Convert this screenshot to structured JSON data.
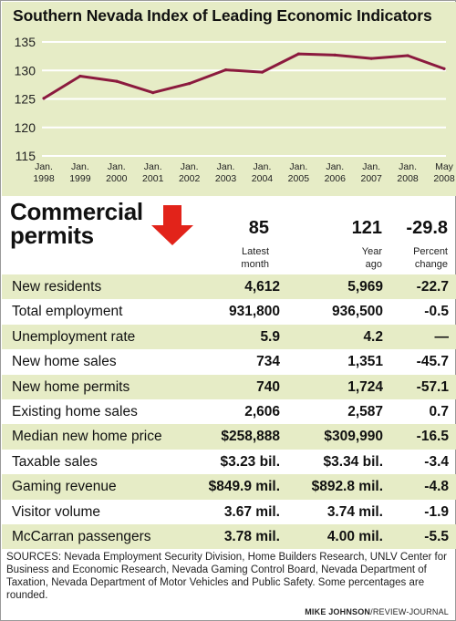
{
  "chart_data": {
    "type": "line",
    "title": "Southern Nevada Index of Leading Economic Indicators",
    "categories": [
      [
        "Jan.",
        "1998"
      ],
      [
        "Jan.",
        "1999"
      ],
      [
        "Jan.",
        "2000"
      ],
      [
        "Jan.",
        "2001"
      ],
      [
        "Jan.",
        "2002"
      ],
      [
        "Jan.",
        "2003"
      ],
      [
        "Jan.",
        "2004"
      ],
      [
        "Jan.",
        "2005"
      ],
      [
        "Jan.",
        "2006"
      ],
      [
        "Jan.",
        "2007"
      ],
      [
        "Jan.",
        "2008"
      ],
      [
        "May",
        "2008"
      ]
    ],
    "values": [
      125.1,
      129.0,
      128.1,
      126.1,
      127.7,
      130.1,
      129.7,
      132.9,
      132.7,
      132.1,
      132.6,
      130.3
    ],
    "yticks": [
      115,
      120,
      125,
      130,
      135
    ],
    "ylim": [
      115,
      135
    ],
    "xlabel": "",
    "ylabel": "",
    "grid": "horizontal",
    "colors": {
      "background": "#e6ecc6",
      "line": "#8b1a3e",
      "grid": "#ffffff"
    }
  },
  "permits": {
    "label_line1": "Commercial",
    "label_line2": "permits",
    "latest": "85",
    "year_ago": "121",
    "percent": "-29.8",
    "sub_latest_line1": "Latest",
    "sub_latest_line2": "month",
    "sub_ago_line1": "Year",
    "sub_ago_line2": "ago",
    "sub_pct_line1": "Percent",
    "sub_pct_line2": "change",
    "arrow_icon": "down-arrow-icon",
    "arrow_color": "#e2231a"
  },
  "rows": [
    {
      "label": "New residents",
      "latest": "4,612",
      "ago": "5,969",
      "pct": "-22.7"
    },
    {
      "label": "Total employment",
      "latest": "931,800",
      "ago": "936,500",
      "pct": "-0.5"
    },
    {
      "label": "Unemployment rate",
      "latest": "5.9",
      "ago": "4.2",
      "pct": "—"
    },
    {
      "label": "New home sales",
      "latest": "734",
      "ago": "1,351",
      "pct": "-45.7"
    },
    {
      "label": "New home permits",
      "latest": "740",
      "ago": "1,724",
      "pct": "-57.1"
    },
    {
      "label": "Existing home sales",
      "latest": "2,606",
      "ago": "2,587",
      "pct": "0.7"
    },
    {
      "label": "Median new home price",
      "latest": "$258,888",
      "ago": "$309,990",
      "pct": "-16.5"
    },
    {
      "label": "Taxable sales",
      "latest": "$3.23 bil.",
      "ago": "$3.34 bil.",
      "pct": "-3.4"
    },
    {
      "label": "Gaming revenue",
      "latest": "$849.9 mil.",
      "ago": "$892.8 mil.",
      "pct": "-4.8"
    },
    {
      "label": "Visitor volume",
      "latest": "3.67 mil.",
      "ago": "3.74 mil.",
      "pct": "-1.9"
    },
    {
      "label": "McCarran passengers",
      "latest": "3.78 mil.",
      "ago": "4.00 mil.",
      "pct": "-5.5"
    }
  ],
  "sources": "SOURCES: Nevada Employment Security Division, Home Builders Research, UNLV Center for Business and Economic Research, Nevada Gaming Control Board, Nevada Department of Taxation, Nevada Department of Motor Vehicles and Public Safety. Some percentages are rounded.",
  "credit": {
    "name": "MIKE JOHNSON",
    "org": "/REVIEW-JOURNAL"
  }
}
